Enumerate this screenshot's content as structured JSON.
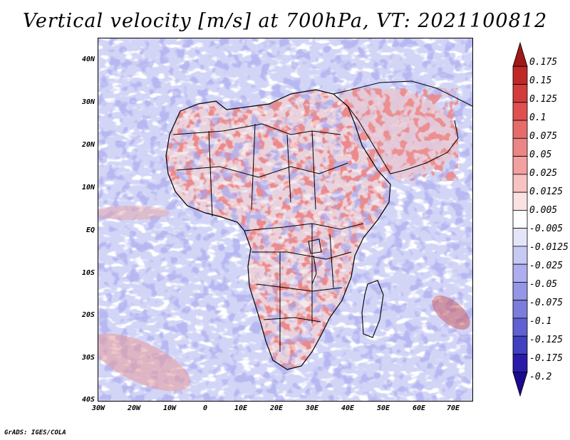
{
  "title": "Vertical velocity [m/s] at 700hPa, VT: 2021100812",
  "credit": "GrADS: IGES/COLA",
  "map": {
    "lat_labels": [
      "40N",
      "30N",
      "20N",
      "10N",
      "EQ",
      "10S",
      "20S",
      "30S",
      "40S"
    ],
    "lon_labels": [
      "30W",
      "20W",
      "10W",
      "0",
      "10E",
      "20E",
      "30E",
      "40E",
      "50E",
      "60E",
      "70E"
    ]
  },
  "colorbar": {
    "labels": [
      "0.175",
      "0.15",
      "0.125",
      "0.1",
      "0.075",
      "0.05",
      "0.025",
      "0.0125",
      "0.005",
      "-0.005",
      "-0.0125",
      "-0.025",
      "-0.05",
      "-0.075",
      "-0.1",
      "-0.125",
      "-0.175",
      "-0.2"
    ],
    "colors": [
      "#a01818",
      "#c02828",
      "#d23c3c",
      "#e05050",
      "#e66b6b",
      "#ec8585",
      "#f2a0a0",
      "#f6c2c2",
      "#fae2e2",
      "#ffffff",
      "#e4e4fa",
      "#c8c8f4",
      "#aeaeee",
      "#9696e6",
      "#7c7cdc",
      "#6060d2",
      "#4040c0",
      "#2a1ca8",
      "#1a0a90"
    ]
  }
}
